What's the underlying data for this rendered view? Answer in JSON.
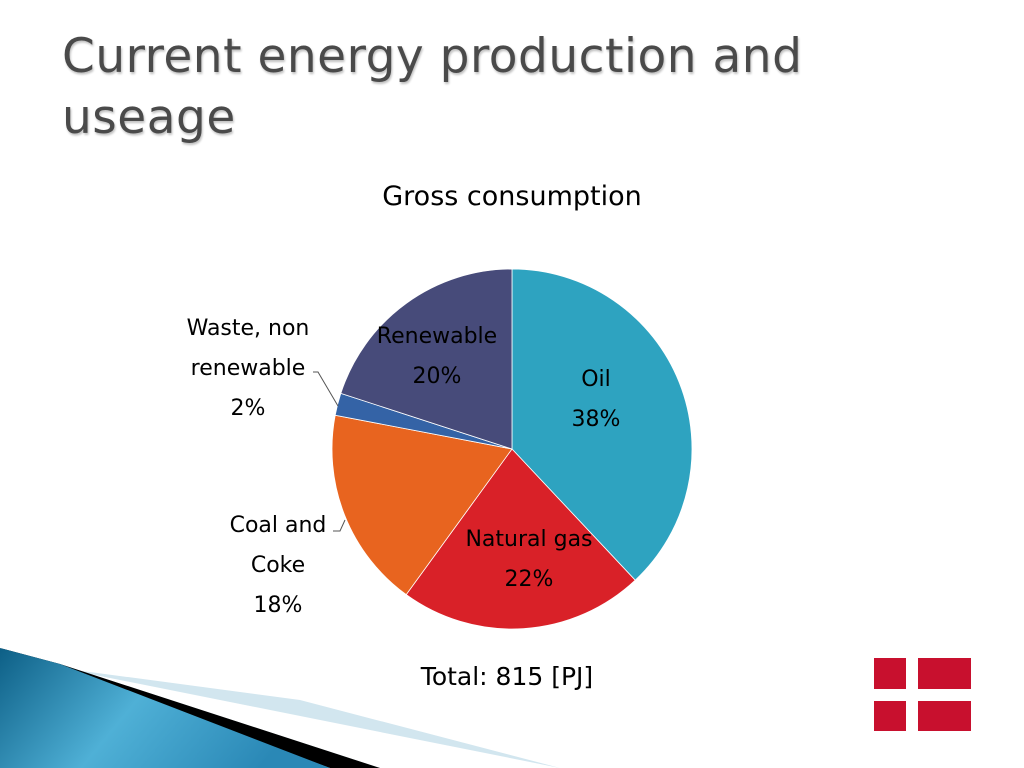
{
  "slide": {
    "title": "Current energy production and useage"
  },
  "chart_data": {
    "type": "pie",
    "title": "Gross consumption",
    "slices": [
      {
        "label_lines": [
          "Oil"
        ],
        "value": 38,
        "value_label": "38%",
        "color": "#2ea3c0"
      },
      {
        "label_lines": [
          "Natural gas"
        ],
        "value": 22,
        "value_label": "22%",
        "color": "#d92128"
      },
      {
        "label_lines": [
          "Coal and",
          "Coke"
        ],
        "value": 18,
        "value_label": "18%",
        "color": "#e8641f"
      },
      {
        "label_lines": [
          "Waste, non",
          "renewable"
        ],
        "value": 2,
        "value_label": "2%",
        "color": "#3463a6"
      },
      {
        "label_lines": [
          "Renewable"
        ],
        "value": 20,
        "value_label": "20%",
        "color": "#474b7a"
      }
    ],
    "start": "12 o'clock, clockwise",
    "annotation": "Total: 815 [PJ]"
  },
  "decor": {
    "flag_color": "#c8102e",
    "swoosh_colors": [
      "#0d5f86",
      "#4fb0d6",
      "#000000",
      "#d2e6ef"
    ]
  }
}
